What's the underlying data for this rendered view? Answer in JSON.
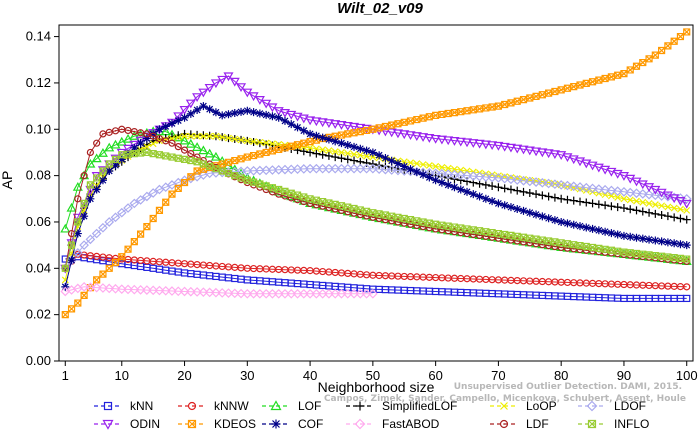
{
  "chart_data": {
    "type": "line",
    "title": "Wilt_02_v09",
    "xlabel": "Neighborhood size",
    "ylabel": "AP",
    "xlim": [
      0,
      101
    ],
    "ylim": [
      0.0,
      0.145
    ],
    "xticks": [
      1,
      10,
      20,
      30,
      40,
      50,
      60,
      70,
      80,
      90,
      100
    ],
    "yticks": [
      0.0,
      0.02,
      0.04,
      0.06,
      0.08,
      0.1,
      0.12,
      0.14
    ],
    "ytick_labels": [
      "0.00",
      "0.02",
      "0.04",
      "0.06",
      "0.08",
      "0.10",
      "0.12",
      "0.14"
    ],
    "grid": false,
    "legend_position": "bottom",
    "series": [
      {
        "name": "kNN",
        "color": "#2222dd",
        "marker": "square",
        "points": [
          [
            1,
            0.044
          ],
          [
            3,
            0.045
          ],
          [
            10,
            0.042
          ],
          [
            20,
            0.038
          ],
          [
            30,
            0.035
          ],
          [
            40,
            0.033
          ],
          [
            50,
            0.031
          ],
          [
            60,
            0.03
          ],
          [
            70,
            0.029
          ],
          [
            80,
            0.028
          ],
          [
            90,
            0.027
          ],
          [
            100,
            0.027
          ]
        ]
      },
      {
        "name": "kNNW",
        "color": "#dd2222",
        "marker": "circle",
        "points": [
          [
            1,
            0.04
          ],
          [
            3,
            0.046
          ],
          [
            10,
            0.044
          ],
          [
            20,
            0.042
          ],
          [
            30,
            0.04
          ],
          [
            40,
            0.039
          ],
          [
            50,
            0.037
          ],
          [
            60,
            0.036
          ],
          [
            70,
            0.035
          ],
          [
            80,
            0.034
          ],
          [
            90,
            0.033
          ],
          [
            100,
            0.032
          ]
        ]
      },
      {
        "name": "LOF",
        "color": "#22dd22",
        "marker": "triangle",
        "points": [
          [
            1,
            0.057
          ],
          [
            3,
            0.075
          ],
          [
            5,
            0.085
          ],
          [
            8,
            0.092
          ],
          [
            12,
            0.097
          ],
          [
            15,
            0.099
          ],
          [
            17,
            0.099
          ],
          [
            20,
            0.095
          ],
          [
            25,
            0.088
          ],
          [
            30,
            0.079
          ],
          [
            35,
            0.073
          ],
          [
            40,
            0.068
          ],
          [
            50,
            0.062
          ],
          [
            60,
            0.057
          ],
          [
            70,
            0.053
          ],
          [
            80,
            0.049
          ],
          [
            90,
            0.046
          ],
          [
            100,
            0.043
          ]
        ]
      },
      {
        "name": "SimplifiedLOF",
        "color": "#000000",
        "marker": "plus",
        "points": [
          [
            1,
            0.04
          ],
          [
            3,
            0.06
          ],
          [
            5,
            0.072
          ],
          [
            8,
            0.082
          ],
          [
            12,
            0.09
          ],
          [
            15,
            0.095
          ],
          [
            20,
            0.098
          ],
          [
            25,
            0.097
          ],
          [
            30,
            0.095
          ],
          [
            40,
            0.09
          ],
          [
            50,
            0.085
          ],
          [
            60,
            0.08
          ],
          [
            70,
            0.075
          ],
          [
            80,
            0.07
          ],
          [
            90,
            0.066
          ],
          [
            100,
            0.061
          ]
        ]
      },
      {
        "name": "LoOP",
        "color": "#eeee00",
        "marker": "x",
        "points": [
          [
            1,
            0.035
          ],
          [
            3,
            0.058
          ],
          [
            5,
            0.072
          ],
          [
            8,
            0.083
          ],
          [
            12,
            0.09
          ],
          [
            16,
            0.095
          ],
          [
            20,
            0.097
          ],
          [
            25,
            0.097
          ],
          [
            30,
            0.095
          ],
          [
            40,
            0.092
          ],
          [
            50,
            0.088
          ],
          [
            60,
            0.084
          ],
          [
            70,
            0.08
          ],
          [
            80,
            0.076
          ],
          [
            90,
            0.07
          ],
          [
            100,
            0.065
          ]
        ]
      },
      {
        "name": "LDOF",
        "color": "#aaaaee",
        "marker": "diamond",
        "points": [
          [
            1,
            0.04
          ],
          [
            4,
            0.05
          ],
          [
            8,
            0.06
          ],
          [
            12,
            0.068
          ],
          [
            16,
            0.074
          ],
          [
            20,
            0.078
          ],
          [
            24,
            0.081
          ],
          [
            30,
            0.082
          ],
          [
            40,
            0.083
          ],
          [
            50,
            0.083
          ],
          [
            60,
            0.081
          ],
          [
            70,
            0.079
          ],
          [
            80,
            0.076
          ],
          [
            90,
            0.073
          ],
          [
            100,
            0.07
          ]
        ]
      },
      {
        "name": "ODIN",
        "color": "#9922ee",
        "marker": "triangle-down",
        "points": [
          [
            1,
            0.04
          ],
          [
            3,
            0.062
          ],
          [
            6,
            0.08
          ],
          [
            10,
            0.09
          ],
          [
            14,
            0.097
          ],
          [
            18,
            0.103
          ],
          [
            22,
            0.114
          ],
          [
            25,
            0.12
          ],
          [
            27,
            0.123
          ],
          [
            30,
            0.116
          ],
          [
            35,
            0.108
          ],
          [
            40,
            0.104
          ],
          [
            50,
            0.1
          ],
          [
            60,
            0.096
          ],
          [
            70,
            0.093
          ],
          [
            80,
            0.089
          ],
          [
            90,
            0.08
          ],
          [
            100,
            0.068
          ]
        ]
      },
      {
        "name": "KDEOS",
        "color": "#ff9900",
        "marker": "square-x",
        "points": [
          [
            1,
            0.02
          ],
          [
            3,
            0.025
          ],
          [
            6,
            0.035
          ],
          [
            10,
            0.045
          ],
          [
            14,
            0.058
          ],
          [
            18,
            0.072
          ],
          [
            22,
            0.082
          ],
          [
            26,
            0.085
          ],
          [
            30,
            0.088
          ],
          [
            36,
            0.092
          ],
          [
            42,
            0.096
          ],
          [
            50,
            0.1
          ],
          [
            60,
            0.106
          ],
          [
            70,
            0.11
          ],
          [
            80,
            0.117
          ],
          [
            90,
            0.124
          ],
          [
            95,
            0.132
          ],
          [
            98,
            0.138
          ],
          [
            100,
            0.142
          ]
        ]
      },
      {
        "name": "COF",
        "color": "#000088",
        "marker": "asterisk",
        "points": [
          [
            1,
            0.032
          ],
          [
            3,
            0.055
          ],
          [
            5,
            0.07
          ],
          [
            8,
            0.082
          ],
          [
            12,
            0.092
          ],
          [
            16,
            0.1
          ],
          [
            20,
            0.105
          ],
          [
            23,
            0.11
          ],
          [
            26,
            0.106
          ],
          [
            30,
            0.108
          ],
          [
            35,
            0.105
          ],
          [
            40,
            0.098
          ],
          [
            50,
            0.09
          ],
          [
            60,
            0.078
          ],
          [
            70,
            0.068
          ],
          [
            80,
            0.06
          ],
          [
            90,
            0.054
          ],
          [
            100,
            0.05
          ]
        ]
      },
      {
        "name": "FastABOD",
        "color": "#ffaaee",
        "marker": "diamond",
        "points": [
          [
            1,
            0.03
          ],
          [
            4,
            0.032
          ],
          [
            10,
            0.031
          ],
          [
            20,
            0.03
          ],
          [
            30,
            0.029
          ],
          [
            40,
            0.029
          ],
          [
            50,
            0.029
          ]
        ]
      },
      {
        "name": "LDF",
        "color": "#aa2222",
        "marker": "circle-dot",
        "points": [
          [
            1,
            0.04
          ],
          [
            3,
            0.07
          ],
          [
            5,
            0.09
          ],
          [
            7,
            0.098
          ],
          [
            10,
            0.1
          ],
          [
            14,
            0.098
          ],
          [
            18,
            0.094
          ],
          [
            22,
            0.088
          ],
          [
            26,
            0.082
          ],
          [
            30,
            0.077
          ],
          [
            35,
            0.072
          ],
          [
            40,
            0.068
          ],
          [
            50,
            0.062
          ],
          [
            60,
            0.057
          ],
          [
            70,
            0.053
          ],
          [
            80,
            0.049
          ],
          [
            90,
            0.046
          ],
          [
            100,
            0.043
          ]
        ]
      },
      {
        "name": "INFLO",
        "color": "#99cc33",
        "marker": "square-x",
        "points": [
          [
            1,
            0.04
          ],
          [
            3,
            0.06
          ],
          [
            5,
            0.076
          ],
          [
            8,
            0.085
          ],
          [
            10,
            0.089
          ],
          [
            14,
            0.09
          ],
          [
            18,
            0.088
          ],
          [
            22,
            0.086
          ],
          [
            26,
            0.082
          ],
          [
            30,
            0.078
          ],
          [
            35,
            0.074
          ],
          [
            40,
            0.07
          ],
          [
            50,
            0.064
          ],
          [
            60,
            0.059
          ],
          [
            70,
            0.055
          ],
          [
            80,
            0.051
          ],
          [
            90,
            0.047
          ],
          [
            100,
            0.044
          ]
        ]
      }
    ]
  },
  "watermark_line1": "Unsupervised Outlier Detection. DAMI, 2015.",
  "watermark_line2": "Campos, Zimek, Sander, Campello, Micenkova, Schubert, Assent, Houle"
}
